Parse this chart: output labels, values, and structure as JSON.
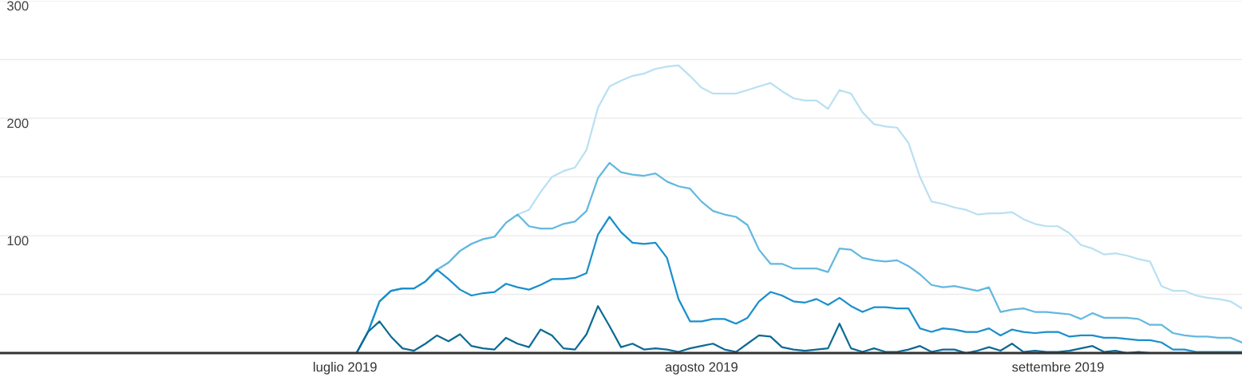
{
  "chart_data": {
    "type": "line",
    "x": [
      "2019-06-01",
      "2019-07-02",
      "2019-07-03",
      "2019-07-04",
      "2019-07-05",
      "2019-07-06",
      "2019-07-07",
      "2019-07-08",
      "2019-07-09",
      "2019-07-10",
      "2019-07-11",
      "2019-07-12",
      "2019-07-13",
      "2019-07-14",
      "2019-07-15",
      "2019-07-16",
      "2019-07-17",
      "2019-07-18",
      "2019-07-19",
      "2019-07-20",
      "2019-07-21",
      "2019-07-22",
      "2019-07-23",
      "2019-07-24",
      "2019-07-25",
      "2019-07-26",
      "2019-07-27",
      "2019-07-28",
      "2019-07-29",
      "2019-07-30",
      "2019-07-31",
      "2019-08-01",
      "2019-08-02",
      "2019-08-03",
      "2019-08-04",
      "2019-08-05",
      "2019-08-06",
      "2019-08-07",
      "2019-08-08",
      "2019-08-09",
      "2019-08-10",
      "2019-08-11",
      "2019-08-12",
      "2019-08-13",
      "2019-08-14",
      "2019-08-15",
      "2019-08-16",
      "2019-08-17",
      "2019-08-18",
      "2019-08-19",
      "2019-08-20",
      "2019-08-21",
      "2019-08-22",
      "2019-08-23",
      "2019-08-24",
      "2019-08-25",
      "2019-08-26",
      "2019-08-27",
      "2019-08-28",
      "2019-08-29",
      "2019-08-30",
      "2019-08-31",
      "2019-09-01",
      "2019-09-02",
      "2019-09-03",
      "2019-09-04",
      "2019-09-05",
      "2019-09-06",
      "2019-09-07",
      "2019-09-08",
      "2019-09-09",
      "2019-09-10",
      "2019-09-11",
      "2019-09-12",
      "2019-09-13",
      "2019-09-14",
      "2019-09-15",
      "2019-09-16",
      "2019-09-17"
    ],
    "series": [
      {
        "color": "#b9e0f2",
        "values": [
          0,
          0,
          18,
          44,
          53,
          55,
          55,
          61,
          71,
          77,
          87,
          93,
          97,
          99,
          111,
          118,
          122,
          137,
          150,
          155,
          158,
          173,
          209,
          227,
          232,
          236,
          238,
          242,
          244,
          245,
          236,
          226,
          221,
          221,
          221,
          224,
          227,
          230,
          223,
          217,
          215,
          215,
          208,
          224,
          221,
          205,
          195,
          193,
          192,
          179,
          150,
          129,
          127,
          124,
          122,
          118,
          119,
          119,
          120,
          114,
          110,
          108,
          108,
          102,
          92,
          89,
          84,
          85,
          83,
          80,
          78,
          57,
          53,
          53,
          49,
          47,
          46,
          44,
          38
        ]
      },
      {
        "color": "#62b8e0",
        "values": [
          0,
          0,
          18,
          44,
          53,
          55,
          55,
          61,
          71,
          77,
          87,
          93,
          97,
          99,
          111,
          118,
          108,
          106,
          106,
          110,
          112,
          121,
          149,
          162,
          154,
          152,
          151,
          153,
          146,
          142,
          140,
          129,
          121,
          118,
          116,
          109,
          88,
          76,
          76,
          72,
          72,
          72,
          69,
          89,
          88,
          81,
          79,
          78,
          79,
          74,
          67,
          58,
          56,
          57,
          55,
          53,
          56,
          35,
          37,
          38,
          35,
          35,
          34,
          33,
          29,
          34,
          30,
          30,
          30,
          29,
          24,
          24,
          17,
          15,
          14,
          14,
          13,
          13,
          9
        ]
      },
      {
        "color": "#1a8fcc",
        "values": [
          0,
          0,
          18,
          44,
          53,
          55,
          55,
          61,
          71,
          63,
          54,
          49,
          51,
          52,
          59,
          56,
          54,
          58,
          63,
          63,
          64,
          68,
          101,
          116,
          103,
          94,
          93,
          94,
          81,
          46,
          27,
          27,
          29,
          29,
          25,
          30,
          44,
          52,
          49,
          44,
          43,
          46,
          41,
          47,
          40,
          35,
          39,
          39,
          38,
          38,
          21,
          18,
          21,
          20,
          18,
          18,
          21,
          15,
          20,
          18,
          17,
          18,
          18,
          14,
          15,
          15,
          13,
          13,
          12,
          11,
          11,
          9,
          3,
          3,
          1,
          1,
          1,
          1,
          1
        ]
      },
      {
        "color": "#0d6a94",
        "values": [
          0,
          0,
          18,
          27,
          14,
          4,
          2,
          8,
          15,
          10,
          16,
          6,
          4,
          3,
          13,
          8,
          5,
          20,
          15,
          4,
          3,
          16,
          40,
          23,
          5,
          8,
          3,
          4,
          3,
          1,
          4,
          6,
          8,
          3,
          1,
          8,
          15,
          14,
          5,
          3,
          2,
          3,
          4,
          25,
          4,
          1,
          4,
          1,
          1,
          3,
          6,
          1,
          3,
          3,
          0,
          2,
          5,
          2,
          8,
          1,
          2,
          1,
          1,
          2,
          4,
          6,
          1,
          2,
          0,
          1,
          0,
          0,
          0,
          0,
          0,
          0,
          0,
          0,
          0
        ]
      }
    ],
    "xlim": [
      "2019-06-01",
      "2019-09-17"
    ],
    "xticks": [
      {
        "value": "2019-07-01",
        "label": "luglio 2019"
      },
      {
        "value": "2019-08-01",
        "label": "agosto 2019"
      },
      {
        "value": "2019-09-01",
        "label": "settembre 2019"
      }
    ],
    "ylim": [
      0,
      300
    ],
    "yticks": [
      {
        "value": 0,
        "label": null
      },
      {
        "value": 50,
        "label": null
      },
      100,
      {
        "value": 150,
        "label": null
      },
      200,
      {
        "value": 250,
        "label": null
      },
      300
    ],
    "grid": "y",
    "legend": false,
    "marker": "none",
    "line_style": "solid"
  }
}
